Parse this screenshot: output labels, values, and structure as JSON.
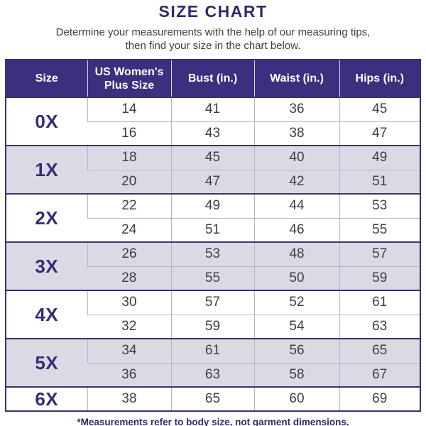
{
  "page": {
    "title": "SIZE CHART",
    "subtitle": [
      "Determine your measurements with the help of our measuring tips,",
      "then find your size in the chart below."
    ],
    "footnote": "*Measurements refer to body size, not garment dimensions."
  },
  "chart_data": {
    "type": "table",
    "title": "SIZE CHART",
    "columns": [
      "Size",
      "US Women's Plus Size",
      "Bust (in.)",
      "Waist (in.)",
      "Hips (in.)"
    ],
    "groups": [
      {
        "size": "0X",
        "shaded": false,
        "rows": [
          [
            14,
            41,
            36,
            45
          ],
          [
            16,
            43,
            38,
            47
          ]
        ]
      },
      {
        "size": "1X",
        "shaded": true,
        "rows": [
          [
            18,
            45,
            40,
            49
          ],
          [
            20,
            47,
            42,
            51
          ]
        ]
      },
      {
        "size": "2X",
        "shaded": false,
        "rows": [
          [
            22,
            49,
            44,
            53
          ],
          [
            24,
            51,
            46,
            55
          ]
        ]
      },
      {
        "size": "3X",
        "shaded": true,
        "rows": [
          [
            26,
            53,
            48,
            57
          ],
          [
            28,
            55,
            50,
            59
          ]
        ]
      },
      {
        "size": "4X",
        "shaded": false,
        "rows": [
          [
            30,
            57,
            52,
            61
          ],
          [
            32,
            59,
            54,
            63
          ]
        ]
      },
      {
        "size": "5X",
        "shaded": true,
        "rows": [
          [
            34,
            61,
            56,
            65
          ],
          [
            36,
            63,
            58,
            67
          ]
        ]
      },
      {
        "size": "6X",
        "shaded": false,
        "rows": [
          [
            38,
            65,
            60,
            69
          ]
        ]
      }
    ]
  },
  "colors": {
    "header_bg": "#3d2f80",
    "header_text": "#ffffff",
    "shaded_row": "#dcd9e4",
    "border_dark": "#39336a",
    "border_light": "#b8b5c3",
    "title_color": "#2e2b6e",
    "size_label_color": "#332e75",
    "value_color": "#3f3d44",
    "subtitle_color": "#3c3c41"
  }
}
